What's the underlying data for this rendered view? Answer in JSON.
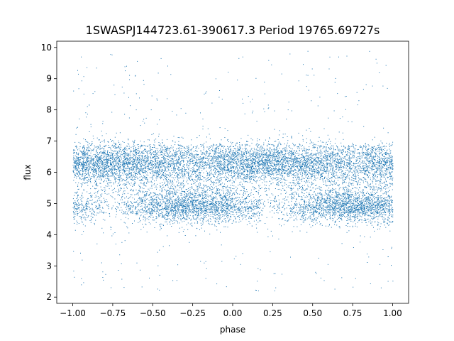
{
  "chart_data": {
    "type": "scatter",
    "title": "1SWASPJ144723.61-390617.3 Period 19765.69727s",
    "xlabel": "phase",
    "ylabel": "flux",
    "xlim": [
      -1.1,
      1.1
    ],
    "ylim": [
      1.8,
      10.2
    ],
    "xticks": [
      -1.0,
      -0.75,
      -0.5,
      -0.25,
      0.0,
      0.25,
      0.5,
      0.75,
      1.0
    ],
    "xtick_labels": [
      "−1.00",
      "−0.75",
      "−0.50",
      "−0.25",
      "0.00",
      "0.25",
      "0.50",
      "0.75",
      "1.00"
    ],
    "yticks": [
      2,
      3,
      4,
      5,
      6,
      7,
      8,
      9,
      10
    ],
    "ytick_labels": [
      "2",
      "3",
      "4",
      "5",
      "6",
      "7",
      "8",
      "9",
      "10"
    ],
    "grid": false,
    "marker_color": "#1f77b4",
    "x_range_of_points": [
      -1.0,
      1.0
    ],
    "bands": [
      {
        "name": "upper",
        "center": 6.3,
        "spread": 0.4
      },
      {
        "name": "lower",
        "center": 4.9,
        "spread": 0.35
      }
    ],
    "upper_band_occupancy": [
      {
        "phase": -1.0,
        "weight": 1.0
      },
      {
        "phase": -0.75,
        "weight": 1.0
      },
      {
        "phase": -0.5,
        "weight": 0.75
      },
      {
        "phase": -0.25,
        "weight": 0.35
      },
      {
        "phase": -0.125,
        "weight": 0.45
      },
      {
        "phase": 0.0,
        "weight": 0.8
      },
      {
        "phase": 0.25,
        "weight": 1.0
      },
      {
        "phase": 0.5,
        "weight": 0.75
      },
      {
        "phase": 0.75,
        "weight": 0.35
      },
      {
        "phase": 0.875,
        "weight": 0.45
      },
      {
        "phase": 1.0,
        "weight": 0.8
      }
    ],
    "lower_band_occupancy": [
      {
        "phase": -1.0,
        "weight": 0.6
      },
      {
        "phase": -0.75,
        "weight": 0.05
      },
      {
        "phase": -0.5,
        "weight": 0.7
      },
      {
        "phase": -0.25,
        "weight": 1.0
      },
      {
        "phase": 0.0,
        "weight": 0.8
      },
      {
        "phase": 0.25,
        "weight": 0.05
      },
      {
        "phase": 0.5,
        "weight": 0.7
      },
      {
        "phase": 0.75,
        "weight": 1.0
      },
      {
        "phase": 1.0,
        "weight": 0.8
      }
    ],
    "outlier_range": [
      2.2,
      9.9
    ]
  }
}
